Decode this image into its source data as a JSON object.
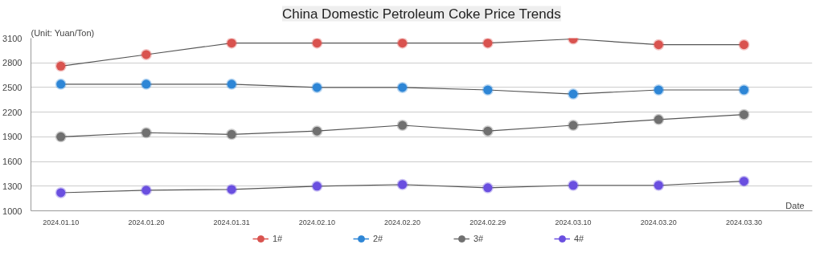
{
  "chart_data": {
    "type": "line",
    "title": "China Domestic Petroleum Coke Price Trends",
    "ylabel": "(Unit: Yuan/Ton)",
    "xlabel": "Date",
    "categories": [
      "2024.01.10",
      "2024.01.20",
      "2024.01.31",
      "2024.02.10",
      "2024.02.20",
      "2024.02.29",
      "2024.03.10",
      "2024.03.20",
      "2024.03.30"
    ],
    "series": [
      {
        "name": "1#",
        "color": "#d9534f",
        "values": [
          2760,
          2900,
          3040,
          3040,
          3040,
          3040,
          3090,
          3020,
          3020
        ]
      },
      {
        "name": "2#",
        "color": "#2e86d6",
        "values": [
          2540,
          2540,
          2540,
          2500,
          2500,
          2470,
          2420,
          2470,
          2470
        ]
      },
      {
        "name": "3#",
        "color": "#707070",
        "values": [
          1900,
          1950,
          1930,
          1970,
          2040,
          1970,
          2040,
          2110,
          2170
        ]
      },
      {
        "name": "4#",
        "color": "#6a4fe0",
        "values": [
          1220,
          1250,
          1260,
          1300,
          1320,
          1280,
          1310,
          1310,
          1360
        ]
      }
    ],
    "ylim": [
      1000,
      3100
    ],
    "yticks": [
      1000,
      1300,
      1600,
      1900,
      2200,
      2500,
      2800,
      3100
    ],
    "grid": "y",
    "legend": "bottom",
    "marker": "circle",
    "line_style": "solid"
  }
}
